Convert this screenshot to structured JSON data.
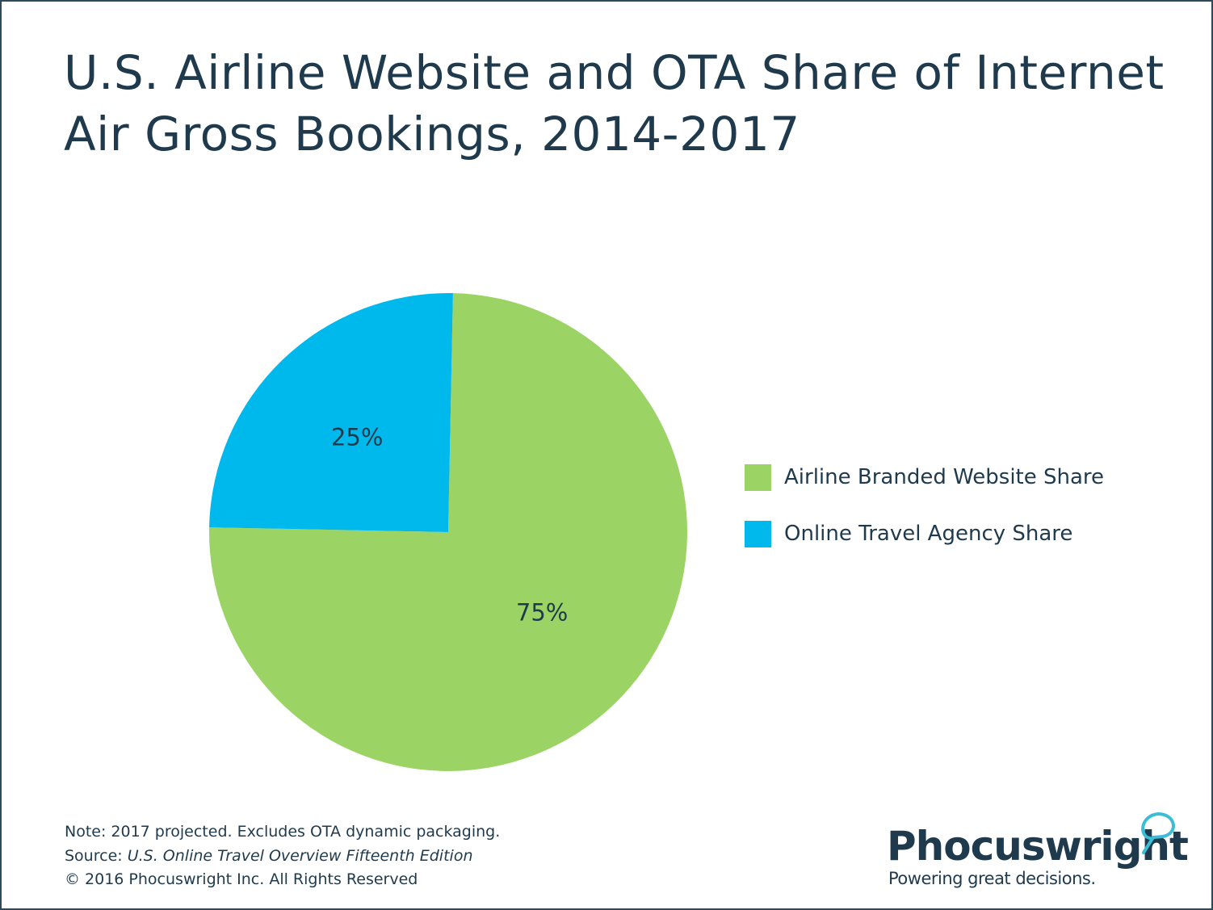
{
  "chart_data": {
    "type": "pie",
    "title": "U.S. Airline Website and OTA Share of Internet Air Gross Bookings, 2014-2017",
    "slices": [
      {
        "name": "Airline Branded Website Share",
        "value": 75,
        "label": "75%",
        "color": "#9bd465"
      },
      {
        "name": "Online Travel Agency Share",
        "value": 25,
        "label": "25%",
        "color": "#00b9ec"
      }
    ],
    "legend_position": "right"
  },
  "notes": {
    "note": "Note: 2017 projected. Excludes OTA dynamic packaging.",
    "source_prefix": "Source: ",
    "source_title": "U.S. Online Travel Overview Fifteenth Edition",
    "copyright": "© 2016 Phocuswright Inc. All Rights Reserved"
  },
  "logo": {
    "name": "Phocuswright",
    "tagline": "Powering great decisions.",
    "accent": "#3bbdd6"
  }
}
